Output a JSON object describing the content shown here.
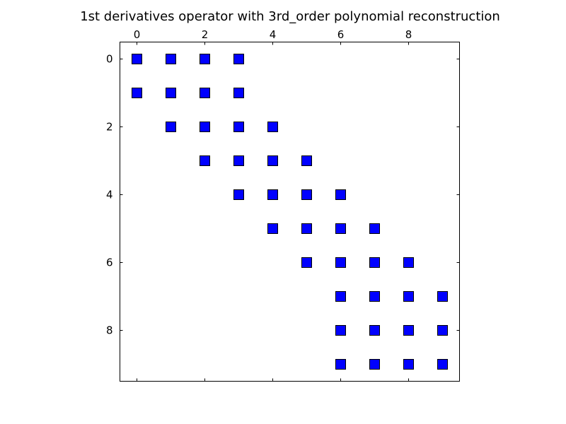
{
  "chart_data": {
    "type": "scatter",
    "title": "1st derivatives operator with 3rd_order polynomial reconstruction",
    "xlabel": "",
    "ylabel": "",
    "xlim": [
      -0.5,
      9.5
    ],
    "ylim": [
      9.5,
      -0.5
    ],
    "x_ticks": [
      0,
      2,
      4,
      6,
      8
    ],
    "y_ticks": [
      0,
      2,
      4,
      6,
      8
    ],
    "x_tick_position": "top",
    "y_inverted": true,
    "grid": false,
    "marker": "square",
    "marker_color": "#0000ff",
    "marker_edge_color": "#000000",
    "points": [
      {
        "row": 0,
        "col": 0
      },
      {
        "row": 0,
        "col": 1
      },
      {
        "row": 0,
        "col": 2
      },
      {
        "row": 0,
        "col": 3
      },
      {
        "row": 1,
        "col": 0
      },
      {
        "row": 1,
        "col": 1
      },
      {
        "row": 1,
        "col": 2
      },
      {
        "row": 1,
        "col": 3
      },
      {
        "row": 2,
        "col": 1
      },
      {
        "row": 2,
        "col": 2
      },
      {
        "row": 2,
        "col": 3
      },
      {
        "row": 2,
        "col": 4
      },
      {
        "row": 3,
        "col": 2
      },
      {
        "row": 3,
        "col": 3
      },
      {
        "row": 3,
        "col": 4
      },
      {
        "row": 3,
        "col": 5
      },
      {
        "row": 4,
        "col": 3
      },
      {
        "row": 4,
        "col": 4
      },
      {
        "row": 4,
        "col": 5
      },
      {
        "row": 4,
        "col": 6
      },
      {
        "row": 5,
        "col": 4
      },
      {
        "row": 5,
        "col": 5
      },
      {
        "row": 5,
        "col": 6
      },
      {
        "row": 5,
        "col": 7
      },
      {
        "row": 6,
        "col": 5
      },
      {
        "row": 6,
        "col": 6
      },
      {
        "row": 6,
        "col": 7
      },
      {
        "row": 6,
        "col": 8
      },
      {
        "row": 7,
        "col": 6
      },
      {
        "row": 7,
        "col": 7
      },
      {
        "row": 7,
        "col": 8
      },
      {
        "row": 7,
        "col": 9
      },
      {
        "row": 8,
        "col": 6
      },
      {
        "row": 8,
        "col": 7
      },
      {
        "row": 8,
        "col": 8
      },
      {
        "row": 8,
        "col": 9
      },
      {
        "row": 9,
        "col": 6
      },
      {
        "row": 9,
        "col": 7
      },
      {
        "row": 9,
        "col": 8
      },
      {
        "row": 9,
        "col": 9
      }
    ]
  }
}
